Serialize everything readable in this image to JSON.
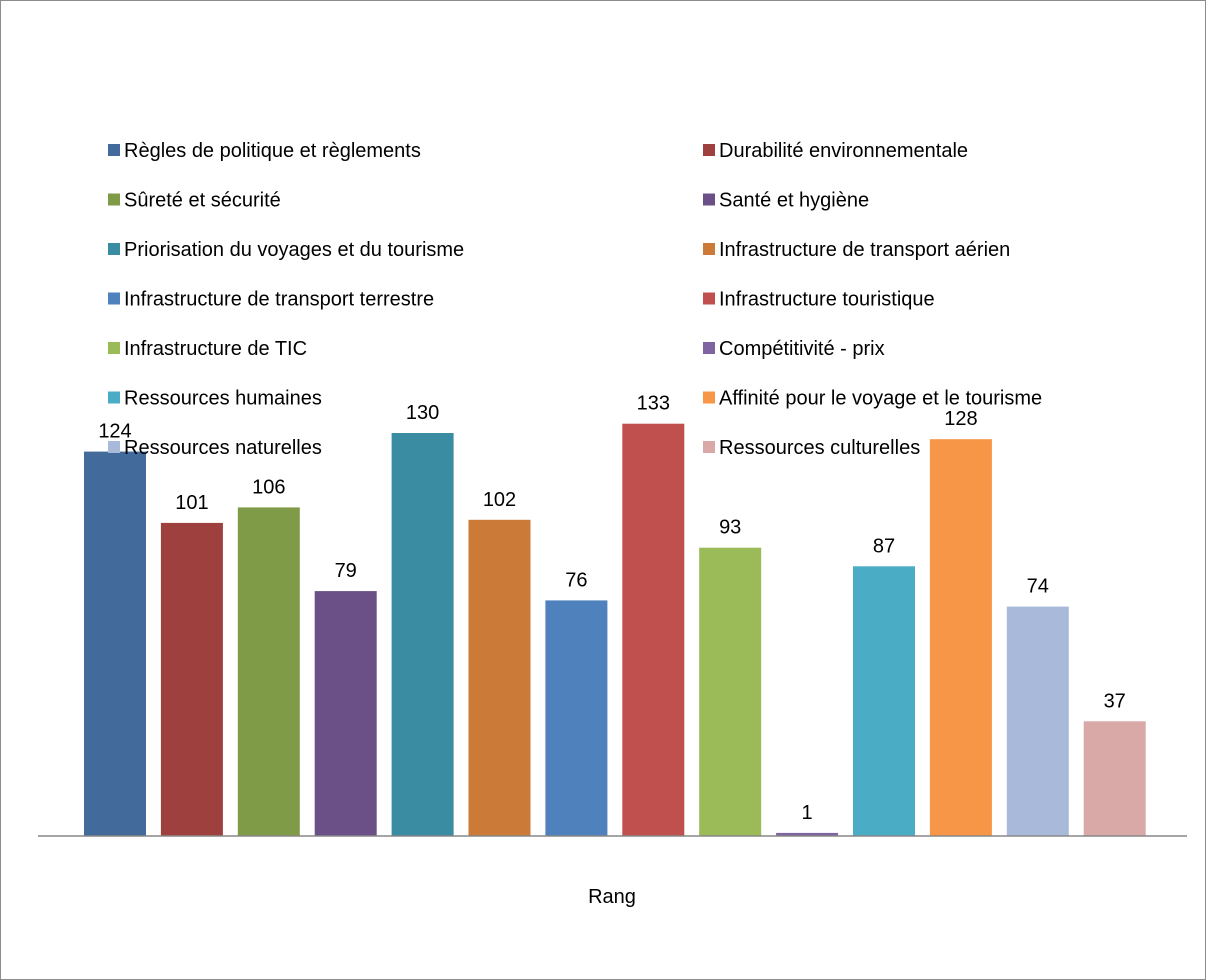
{
  "chart_data": {
    "type": "bar",
    "xlabel": "Rang",
    "ylim": [
      0,
      140
    ],
    "grid": false,
    "legend_position": "top",
    "categories": [
      "Rang"
    ],
    "series": [
      {
        "name": "Règles de politique et règlements",
        "value": 124,
        "color": "#426b9c"
      },
      {
        "name": "Durabilité environnementale",
        "value": 101,
        "color": "#9e403e"
      },
      {
        "name": "Sûreté et sécurité",
        "value": 106,
        "color": "#809b48"
      },
      {
        "name": "Santé et hygiène",
        "value": 79,
        "color": "#6a5086"
      },
      {
        "name": "Priorisation du voyages et du tourisme",
        "value": 130,
        "color": "#3a8ca2"
      },
      {
        "name": "Infrastructure de transport aérien",
        "value": 102,
        "color": "#cc7a38"
      },
      {
        "name": "Infrastructure de transport terrestre",
        "value": 76,
        "color": "#4f81bd"
      },
      {
        "name": "Infrastructure touristique",
        "value": 133,
        "color": "#c0504d"
      },
      {
        "name": "Infrastructure de TIC",
        "value": 93,
        "color": "#9bbb59"
      },
      {
        "name": "Compétitivité - prix",
        "value": 1,
        "color": "#8064a2"
      },
      {
        "name": "Ressources humaines",
        "value": 87,
        "color": "#4bacc6"
      },
      {
        "name": "Affinité pour le voyage et le tourisme",
        "value": 128,
        "color": "#f79646"
      },
      {
        "name": "Ressources naturelles",
        "value": 74,
        "color": "#a9b9d9"
      },
      {
        "name": "Ressources culturelles",
        "value": 37,
        "color": "#d9a9a8"
      }
    ]
  }
}
